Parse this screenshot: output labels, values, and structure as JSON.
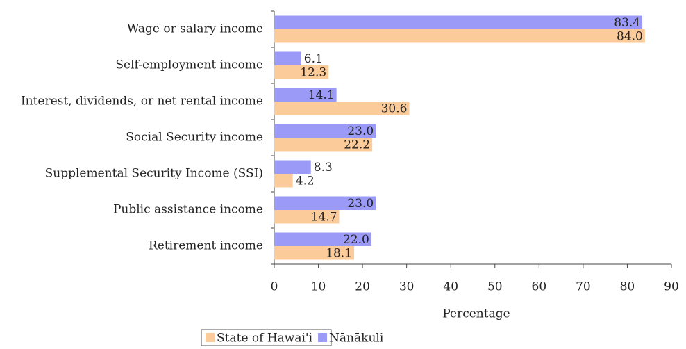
{
  "chart_data": {
    "type": "hbar",
    "categories": [
      "Wage or salary income",
      "Self-employment income",
      "Interest, dividends, or net rental income",
      "Social Security income",
      "Supplemental Security Income (SSI)",
      "Public assistance income",
      "Retirement income"
    ],
    "series": [
      {
        "name": "State of Hawai'i",
        "color": "#fccb9a",
        "values": [
          84.0,
          12.3,
          30.6,
          22.2,
          4.2,
          14.7,
          18.1
        ],
        "value_labels": [
          "84.0",
          "12.3",
          "30.6",
          "22.2",
          "4.2",
          "14.7",
          "18.1"
        ]
      },
      {
        "name": "Nānākuli",
        "color": "#9b9bf7",
        "values": [
          83.4,
          6.1,
          14.1,
          23.0,
          8.3,
          23.0,
          22.0
        ],
        "value_labels": [
          "83.4",
          "6.1",
          "14.1",
          "23.0",
          "8.3",
          "23.0",
          "22.0"
        ]
      }
    ],
    "xlabel": "Percentage",
    "xlim": [
      0,
      90
    ],
    "xticks": [
      0,
      10,
      20,
      30,
      40,
      50,
      60,
      70,
      80,
      90
    ],
    "legend": "bottom"
  }
}
